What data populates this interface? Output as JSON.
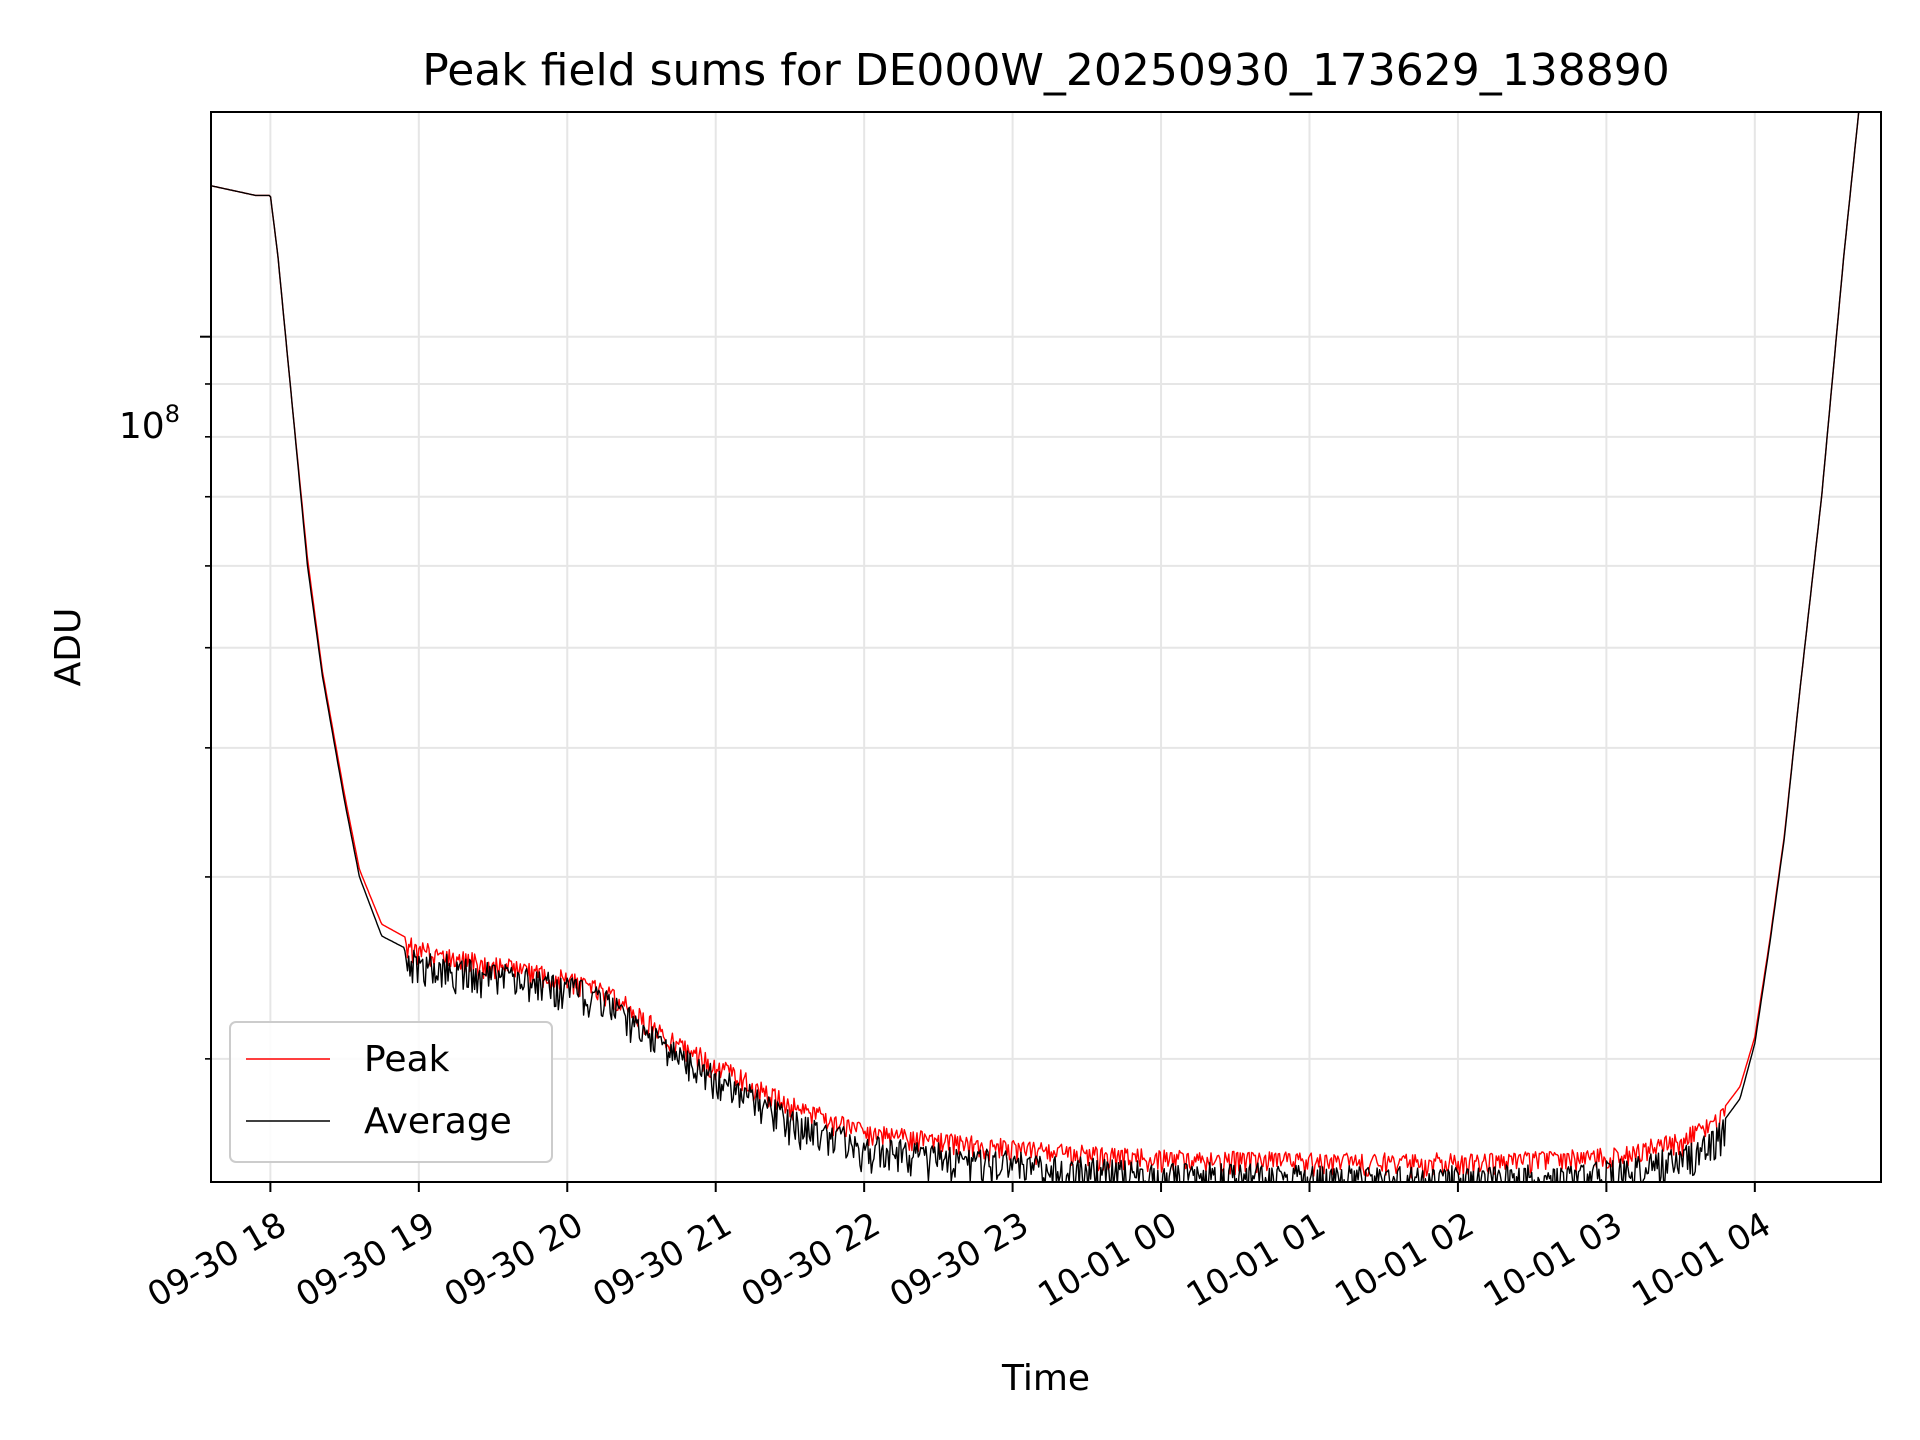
{
  "chart_data": {
    "type": "line",
    "title": "Peak field sums for DE000W_20250930_173629_138890",
    "xlabel": "Time",
    "ylabel": "ADU",
    "scale_y": "log",
    "xlim": [
      -0.4,
      10.85
    ],
    "ylim": [
      15200000,
      165000000
    ],
    "x_unit": "hours since 09-30 18:00",
    "x_ticks": [
      {
        "value": 0,
        "label": "09-30 18"
      },
      {
        "value": 1,
        "label": "09-30 19"
      },
      {
        "value": 2,
        "label": "09-30 20"
      },
      {
        "value": 3,
        "label": "09-30 21"
      },
      {
        "value": 4,
        "label": "09-30 22"
      },
      {
        "value": 5,
        "label": "09-30 23"
      },
      {
        "value": 6,
        "label": "10-01 00"
      },
      {
        "value": 7,
        "label": "10-01 01"
      },
      {
        "value": 8,
        "label": "10-01 02"
      },
      {
        "value": 9,
        "label": "10-01 03"
      },
      {
        "value": 10,
        "label": "10-01 04"
      }
    ],
    "y_major_tick": {
      "value": 100000000,
      "label_base": "10",
      "label_exp": "8"
    },
    "y_minor_ticks": [
      20000000,
      30000000,
      40000000,
      50000000,
      60000000,
      70000000,
      80000000,
      90000000
    ],
    "grid": true,
    "legend_position": "lower-left",
    "series": [
      {
        "name": "Peak",
        "color": "#ff0000",
        "noise": 0.05,
        "x": [
          -0.4,
          -0.2,
          -0.1,
          0.0,
          0.05,
          0.15,
          0.25,
          0.35,
          0.5,
          0.6,
          0.75,
          1.0,
          1.5,
          2.0,
          2.3,
          2.5,
          2.7,
          3.0,
          3.5,
          4.0,
          4.5,
          5.0,
          5.5,
          6.0,
          6.5,
          7.0,
          7.5,
          8.0,
          8.5,
          9.0,
          9.5,
          9.75,
          9.9,
          10.0,
          10.1,
          10.2,
          10.3,
          10.45,
          10.6,
          10.7
        ],
        "y": [
          140000000,
          138000000,
          137000000,
          137000000,
          120000000,
          85000000,
          61000000,
          47500000,
          36000000,
          30500000,
          27000000,
          25800000,
          25000000,
          24300000,
          23400000,
          22300000,
          21200000,
          20000000,
          18300000,
          17200000,
          16900000,
          16600000,
          16400000,
          16250000,
          16200000,
          16150000,
          16100000,
          16100000,
          16150000,
          16300000,
          16900000,
          17600000,
          18800000,
          21000000,
          26000000,
          33000000,
          45000000,
          70000000,
          120000000,
          165000000
        ]
      },
      {
        "name": "Average",
        "color": "#000000",
        "noise": 0.075,
        "x": [
          -0.4,
          -0.2,
          -0.1,
          0.0,
          0.05,
          0.15,
          0.25,
          0.35,
          0.5,
          0.6,
          0.75,
          1.0,
          1.5,
          2.0,
          2.3,
          2.5,
          2.7,
          3.0,
          3.5,
          4.0,
          4.5,
          5.0,
          5.5,
          6.0,
          6.5,
          7.0,
          7.5,
          8.0,
          8.5,
          9.0,
          9.5,
          9.75,
          9.9,
          10.0,
          10.1,
          10.2,
          10.3,
          10.45,
          10.6,
          10.7
        ],
        "y": [
          140000000,
          138000000,
          137000000,
          137000000,
          120000000,
          85000000,
          60000000,
          47000000,
          35500000,
          30000000,
          26300000,
          25200000,
          24600000,
          23900000,
          23000000,
          21800000,
          20600000,
          19500000,
          17800000,
          16700000,
          16400000,
          16100000,
          15900000,
          15750000,
          15700000,
          15650000,
          15600000,
          15600000,
          15650000,
          15800000,
          16400000,
          17100000,
          18300000,
          20700000,
          25800000,
          32800000,
          45000000,
          70000000,
          120000000,
          165000000
        ]
      }
    ]
  }
}
